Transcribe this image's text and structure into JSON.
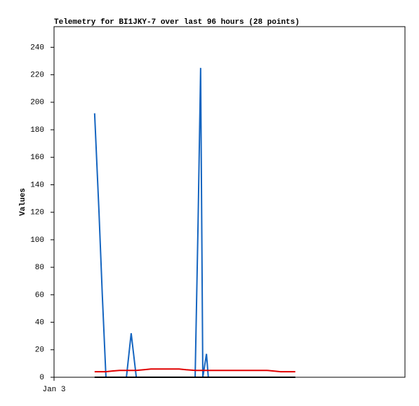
{
  "chart_data": {
    "type": "line",
    "title": "Telemetry for BI1JKY-7 over last 96 hours (28 points)",
    "y_label": "Values",
    "x": [
      11.1,
      12.3,
      13.2,
      14.2,
      15.9,
      17.9,
      19.8,
      21.1,
      22.5,
      24.6,
      26.5,
      28.4,
      30.3,
      32.3,
      34.2,
      36.1,
      38.6,
      39.4,
      40.1,
      40.7,
      41.7,
      42.2,
      46.7,
      50.5,
      54.3,
      58.2,
      62.0,
      66.0
    ],
    "xlim": [
      0,
      96
    ],
    "xticks": [
      {
        "value": 0,
        "label": "Jan 3"
      }
    ],
    "ylim": [
      0,
      255
    ],
    "yticks": [
      0,
      20,
      40,
      60,
      80,
      100,
      120,
      140,
      160,
      180,
      200,
      220,
      240
    ],
    "series": [
      {
        "color": "#1565c0",
        "values": [
          192,
          120,
          60,
          0,
          0,
          0,
          0,
          32,
          0,
          0,
          0,
          0,
          0,
          0,
          0,
          0,
          0,
          112,
          225,
          0,
          17,
          0,
          0,
          0,
          0,
          0,
          0,
          0
        ]
      },
      {
        "color": "#e00000",
        "values": [
          4,
          4,
          4,
          4,
          4.5,
          5,
          5,
          5,
          5,
          5.5,
          6,
          6,
          6,
          6,
          6,
          5.5,
          5,
          5,
          5,
          5,
          5,
          5,
          5,
          5,
          5,
          5,
          4,
          4
        ]
      },
      {
        "color": "#000000",
        "values": [
          0,
          0,
          0,
          0,
          0,
          0,
          0,
          0,
          0,
          0,
          0,
          0,
          0,
          0,
          0,
          0,
          0,
          0,
          0,
          0,
          0,
          0,
          0,
          0,
          0,
          0,
          0,
          0
        ]
      }
    ]
  }
}
